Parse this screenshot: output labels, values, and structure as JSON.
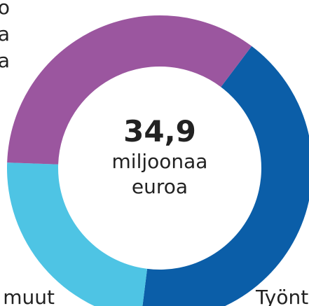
{
  "chart_data": {
    "type": "donut",
    "categories": [
      "Työnt",
      "muut",
      null
    ],
    "values": [
      41.7,
      23.6,
      34.7
    ],
    "colors": [
      "#0b5ea8",
      "#4ec4e4",
      "#9b569f"
    ],
    "center_value": "34,9",
    "center_label": [
      "miljoonaa",
      "euroa"
    ],
    "annotations": [
      "o",
      "a",
      "a"
    ]
  }
}
